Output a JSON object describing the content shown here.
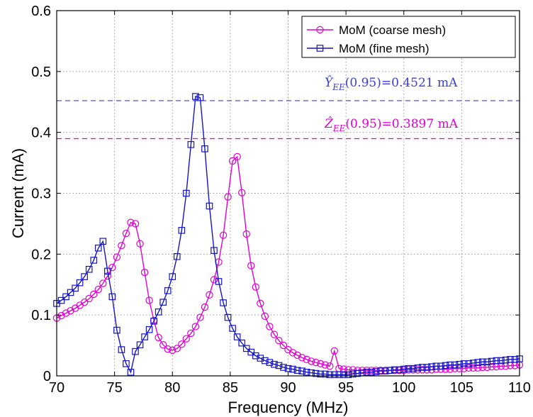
{
  "chart_data": {
    "type": "line",
    "xlabel": "Frequency (MHz)",
    "ylabel": "Current (mA)",
    "xlim": [
      70,
      110
    ],
    "ylim": [
      0,
      0.6
    ],
    "xticks": [
      "70",
      "75",
      "80",
      "85",
      "90",
      "95",
      "100",
      "105",
      "110"
    ],
    "yticks": [
      "0",
      "0.1",
      "0.2",
      "0.3",
      "0.4",
      "0.5",
      "0.6"
    ],
    "grid": true,
    "legend_position": "top-right",
    "series": [
      {
        "name": "MoM (coarse mesh)",
        "color": "#e000d0",
        "marker": "circle",
        "x": [
          70,
          70.4,
          70.8,
          71.2,
          71.6,
          72.0,
          72.4,
          72.8,
          73.2,
          73.6,
          74.0,
          74.4,
          74.8,
          75.2,
          75.6,
          76.0,
          76.4,
          76.8,
          77.2,
          77.6,
          78.0,
          78.4,
          78.8,
          79.2,
          79.6,
          80.0,
          80.4,
          80.8,
          81.2,
          81.6,
          82.0,
          82.4,
          82.8,
          83.2,
          83.6,
          84.0,
          84.4,
          84.8,
          85.2,
          85.6,
          86.0,
          86.4,
          86.8,
          87.2,
          87.6,
          88.0,
          88.4,
          88.8,
          89.2,
          89.6,
          90.0,
          90.4,
          90.8,
          91.2,
          91.6,
          92.0,
          92.4,
          92.8,
          93.2,
          93.6,
          94.0,
          94.4,
          94.8,
          95.2,
          95.6,
          96.0,
          96.4,
          96.8,
          97.2,
          97.6,
          98.0,
          98.4,
          98.8,
          99.2,
          99.6,
          100.0,
          100.4,
          100.8,
          101.2,
          101.6,
          102.0,
          102.4,
          102.8,
          103.2,
          103.6,
          104.0,
          104.4,
          104.8,
          105.2,
          105.6,
          106.0,
          106.4,
          106.8,
          107.2,
          107.6,
          108.0,
          108.4,
          108.8,
          109.2,
          109.6,
          110.0
        ],
        "y": [
          0.095,
          0.099,
          0.103,
          0.107,
          0.111,
          0.116,
          0.121,
          0.127,
          0.134,
          0.142,
          0.152,
          0.164,
          0.178,
          0.195,
          0.214,
          0.234,
          0.252,
          0.25,
          0.217,
          0.17,
          0.124,
          0.091,
          0.063,
          0.051,
          0.044,
          0.042,
          0.045,
          0.052,
          0.061,
          0.07,
          0.081,
          0.096,
          0.113,
          0.133,
          0.158,
          0.187,
          0.231,
          0.294,
          0.353,
          0.36,
          0.301,
          0.233,
          0.181,
          0.146,
          0.119,
          0.098,
          0.081,
          0.068,
          0.058,
          0.05,
          0.043,
          0.038,
          0.034,
          0.03,
          0.027,
          0.024,
          0.022,
          0.02,
          0.018,
          0.016,
          0.041,
          0.012,
          0.011,
          0.01,
          0.01,
          0.009,
          0.009,
          0.009,
          0.009,
          0.009,
          0.009,
          0.009,
          0.009,
          0.009,
          0.009,
          0.009,
          0.01,
          0.01,
          0.01,
          0.01,
          0.01,
          0.01,
          0.011,
          0.011,
          0.011,
          0.011,
          0.012,
          0.012,
          0.012,
          0.013,
          0.013,
          0.013,
          0.014,
          0.014,
          0.015,
          0.015,
          0.016,
          0.016,
          0.017,
          0.017,
          0.018
        ]
      },
      {
        "name": "MoM (fine mesh)",
        "color": "#1414c8",
        "marker": "square",
        "x": [
          70,
          70.4,
          70.8,
          71.2,
          71.6,
          72.0,
          72.4,
          72.8,
          73.2,
          73.6,
          74.0,
          74.4,
          74.8,
          75.2,
          75.6,
          76.0,
          76.4,
          76.8,
          77.2,
          77.6,
          78.0,
          78.4,
          78.8,
          79.2,
          79.6,
          80.0,
          80.4,
          80.8,
          81.2,
          81.6,
          82.0,
          82.4,
          82.8,
          83.2,
          83.6,
          84.0,
          84.4,
          84.8,
          85.2,
          85.6,
          86.0,
          86.4,
          86.8,
          87.2,
          87.6,
          88.0,
          88.4,
          88.8,
          89.2,
          89.6,
          90.0,
          90.4,
          90.8,
          91.2,
          91.6,
          92.0,
          92.4,
          92.8,
          93.2,
          93.6,
          94.0,
          94.4,
          94.8,
          95.2,
          95.6,
          96.0,
          96.4,
          96.8,
          97.2,
          97.6,
          98.0,
          98.4,
          98.8,
          99.2,
          99.6,
          100.0,
          100.4,
          100.8,
          101.2,
          101.6,
          102.0,
          102.4,
          102.8,
          103.2,
          103.6,
          104.0,
          104.4,
          104.8,
          105.2,
          105.6,
          106.0,
          106.4,
          106.8,
          107.2,
          107.6,
          108.0,
          108.4,
          108.8,
          109.2,
          109.6,
          110.0
        ],
        "y": [
          0.119,
          0.124,
          0.13,
          0.137,
          0.144,
          0.153,
          0.163,
          0.175,
          0.19,
          0.21,
          0.221,
          0.172,
          0.13,
          0.075,
          0.043,
          0.02,
          0.006,
          0.04,
          0.051,
          0.064,
          0.076,
          0.09,
          0.105,
          0.121,
          0.14,
          0.163,
          0.196,
          0.239,
          0.3,
          0.38,
          0.459,
          0.457,
          0.373,
          0.279,
          0.206,
          0.155,
          0.12,
          0.096,
          0.078,
          0.064,
          0.054,
          0.045,
          0.039,
          0.033,
          0.029,
          0.025,
          0.022,
          0.019,
          0.017,
          0.014,
          0.012,
          0.011,
          0.009,
          0.008,
          0.006,
          0.005,
          0.004,
          0.003,
          0.003,
          0.002,
          0.002,
          0.002,
          0.002,
          0.002,
          0.003,
          0.004,
          0.005,
          0.006,
          0.006,
          0.007,
          0.008,
          0.008,
          0.009,
          0.01,
          0.01,
          0.011,
          0.012,
          0.012,
          0.013,
          0.014,
          0.014,
          0.015,
          0.016,
          0.016,
          0.017,
          0.018,
          0.018,
          0.019,
          0.02,
          0.02,
          0.021,
          0.022,
          0.023,
          0.023,
          0.024,
          0.025,
          0.025,
          0.026,
          0.027,
          0.027,
          0.028
        ]
      }
    ],
    "reference_lines": [
      {
        "y": 0.4521,
        "color": "#3c3cdc",
        "style": "dashed",
        "label_main": "Ŷ",
        "label_sub": "EE",
        "label_rest": "(0.95)=0.4521 mA"
      },
      {
        "y": 0.3897,
        "color": "#e000d0",
        "style": "dashed",
        "label_main": "Ẑ",
        "label_sub": "EE",
        "label_rest": "(0.95)=0.3897 mA"
      }
    ]
  }
}
